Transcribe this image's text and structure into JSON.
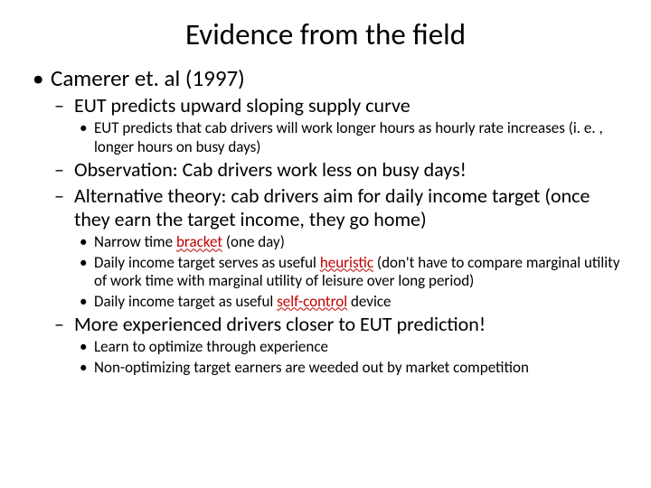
{
  "title": "Evidence from the field",
  "l1": {
    "a": "Camerer et. al (1997)"
  },
  "l2": {
    "a": "EUT predicts upward sloping supply curve",
    "b": "Observation: Cab drivers work less on busy days!",
    "c": "Alternative theory: cab drivers aim for daily income target (once they earn the target income, they go home)",
    "d": "More experienced drivers closer to EUT prediction!"
  },
  "l3a": {
    "a": "EUT predicts that cab drivers will work longer hours as hourly rate increases (i. e. , longer hours on busy days)"
  },
  "l3c": {
    "a_pre": "Narrow time ",
    "a_err": "bracket",
    "a_post": " (one day)",
    "b_pre": "Daily income target serves as useful ",
    "b_err": "heuristic",
    "b_post": " (don't have to compare marginal utility of work time with marginal utility of leisure over long period)",
    "c_pre": "Daily income target as useful ",
    "c_err": "self-control",
    "c_post": " device"
  },
  "l3d": {
    "a": "Learn to optimize through experience",
    "b": "Non-optimizing target earners are weeded out by market competition"
  }
}
